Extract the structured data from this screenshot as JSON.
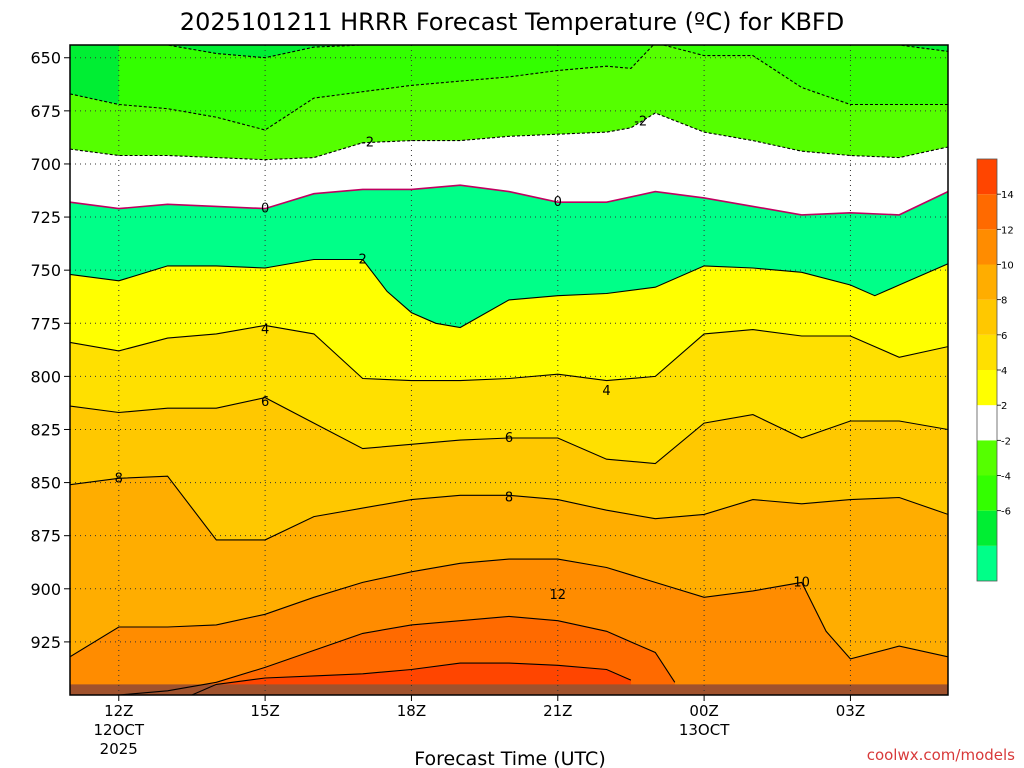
{
  "chart_data": {
    "type": "heatmap",
    "title": "2025101211 HRRR Forecast Temperature (ºC) for KBFD",
    "xlabel": "Forecast Time (UTC)",
    "ylabel": "",
    "x_unit": "hours since 12Z 12OCT 2025",
    "xlim": [
      -1,
      17
    ],
    "ylim": [
      950,
      644
    ],
    "y_ticks": [
      650,
      675,
      700,
      725,
      750,
      775,
      800,
      825,
      850,
      875,
      900,
      925
    ],
    "x_ticks": [
      {
        "x": 0,
        "label": "12Z",
        "sub1": "12OCT",
        "sub2": "2025"
      },
      {
        "x": 3,
        "label": "15Z",
        "sub1": "",
        "sub2": ""
      },
      {
        "x": 6,
        "label": "18Z",
        "sub1": "",
        "sub2": ""
      },
      {
        "x": 9,
        "label": "21Z",
        "sub1": "",
        "sub2": ""
      },
      {
        "x": 12,
        "label": "00Z",
        "sub1": "13OCT",
        "sub2": ""
      },
      {
        "x": 15,
        "label": "03Z",
        "sub1": "",
        "sub2": ""
      }
    ],
    "grid": true,
    "ground_level_hPa": 945,
    "colorbar": {
      "levels": [
        -8,
        -6,
        -4,
        -2,
        2,
        4,
        6,
        8,
        10,
        12,
        14,
        16
      ],
      "colors": [
        "#00ff88",
        "#00ee33",
        "#33ff00",
        "#55ff00",
        "#ffffff",
        "#ffff00",
        "#ffe000",
        "#ffc800",
        "#ffad00",
        "#ff8c00",
        "#ff6a00",
        "#ff4500"
      ],
      "tick_labels": [
        "-6",
        "-4",
        "-2",
        "2",
        "4",
        "6",
        "8",
        "10",
        "12",
        "14"
      ]
    },
    "series": [
      {
        "name": "-6",
        "level": -6,
        "dashed": true,
        "x": [
          0,
          1,
          2,
          3,
          4,
          5,
          6,
          7,
          8,
          9,
          10,
          10.5,
          11,
          12,
          13,
          14,
          15,
          16,
          17
        ],
        "p": [
          644,
          644,
          648,
          650,
          645,
          644,
          644,
          644,
          644,
          644,
          644,
          644,
          644,
          644,
          644,
          644,
          644,
          644,
          647
        ]
      },
      {
        "name": "-4",
        "level": -4,
        "dashed": true,
        "x": [
          -1,
          0,
          1,
          2,
          3,
          4,
          5,
          6,
          7,
          8,
          9,
          10,
          10.5,
          11,
          12,
          13,
          14,
          15,
          16,
          17
        ],
        "p": [
          667,
          672,
          674,
          678,
          684,
          669,
          666,
          663,
          661,
          659,
          656,
          654,
          655,
          643,
          649,
          649,
          664,
          672,
          672,
          672
        ]
      },
      {
        "name": "-2",
        "level": -2,
        "dashed": true,
        "x": [
          -1,
          0,
          1,
          2,
          3,
          4,
          5,
          6,
          7,
          8,
          9,
          10,
          10.5,
          11,
          12,
          13,
          14,
          15,
          16,
          17
        ],
        "p": [
          693,
          696,
          696,
          697,
          698,
          697,
          690,
          689,
          689,
          687,
          686,
          685,
          683,
          676,
          685,
          689,
          694,
          696,
          697,
          692
        ]
      },
      {
        "name": "0",
        "level": 0,
        "dashed": false,
        "color": "#c00060",
        "x": [
          -1,
          0,
          1,
          2,
          3,
          4,
          5,
          6,
          7,
          8,
          9,
          10,
          11,
          12,
          13,
          14,
          15,
          16,
          17
        ],
        "p": [
          718,
          721,
          719,
          720,
          721,
          714,
          712,
          712,
          710,
          713,
          718,
          718,
          713,
          716,
          720,
          724,
          723,
          724,
          713
        ]
      },
      {
        "name": "2",
        "level": 2,
        "dashed": false,
        "x": [
          -1,
          0,
          1,
          2,
          3,
          4,
          5,
          5.5,
          6,
          6.5,
          7,
          8,
          9,
          10,
          11,
          12,
          13,
          14,
          15,
          15.5,
          16,
          17
        ],
        "p": [
          752,
          755,
          748,
          748,
          749,
          745,
          745,
          760,
          770,
          775,
          777,
          764,
          762,
          761,
          758,
          748,
          749,
          751,
          757,
          762,
          757,
          747
        ]
      },
      {
        "name": "4",
        "level": 4,
        "dashed": false,
        "x": [
          -1,
          0,
          1,
          2,
          3,
          4,
          5,
          6,
          7,
          8,
          9,
          10,
          11,
          12,
          13,
          14,
          15,
          16,
          17
        ],
        "p": [
          784,
          788,
          782,
          780,
          776,
          780,
          801,
          802,
          802,
          801,
          799,
          802,
          800,
          780,
          778,
          781,
          781,
          791,
          786
        ]
      },
      {
        "name": "6",
        "level": 6,
        "dashed": false,
        "x": [
          -1,
          0,
          1,
          2,
          3,
          4,
          5,
          6,
          7,
          8,
          9,
          10,
          11,
          12,
          13,
          14,
          15,
          16,
          17
        ],
        "p": [
          814,
          817,
          815,
          815,
          810,
          822,
          834,
          832,
          830,
          829,
          829,
          839,
          841,
          822,
          818,
          829,
          821,
          821,
          825
        ]
      },
      {
        "name": "8",
        "level": 8,
        "dashed": false,
        "x": [
          -1,
          0,
          1,
          2,
          3,
          4,
          5,
          6,
          7,
          8,
          9,
          10,
          11,
          12,
          13,
          14,
          15,
          16,
          17
        ],
        "p": [
          851,
          848,
          847,
          877,
          877,
          866,
          862,
          858,
          856,
          856,
          858,
          863,
          867,
          865,
          858,
          860,
          858,
          857,
          865
        ]
      },
      {
        "name": "10",
        "level": 10,
        "dashed": false,
        "x": [
          -1,
          0,
          1,
          2,
          3,
          4,
          5,
          6,
          7,
          8,
          9,
          10,
          11,
          12,
          13,
          14,
          14.5,
          15,
          16,
          17
        ],
        "p": [
          932,
          918,
          918,
          917,
          912,
          904,
          897,
          892,
          888,
          886,
          886,
          890,
          897,
          904,
          901,
          897,
          920,
          933,
          927,
          932
        ]
      },
      {
        "name": "12",
        "level": 12,
        "dashed": false,
        "x": [
          0,
          1,
          2,
          3,
          4,
          5,
          6,
          7,
          8,
          9,
          10,
          11,
          11.4
        ],
        "p": [
          950,
          948,
          944,
          937,
          929,
          921,
          917,
          915,
          913,
          915,
          920,
          930,
          944
        ]
      },
      {
        "name": "14",
        "level": 14,
        "dashed": false,
        "x": [
          1.5,
          2,
          3,
          4,
          5,
          6,
          7,
          8,
          9,
          10,
          10.5
        ],
        "p": [
          950,
          945,
          942,
          941,
          940,
          938,
          935,
          935,
          936,
          938,
          943
        ]
      }
    ],
    "contour_labels": [
      {
        "text": "-2",
        "x": 10.7,
        "p": 680
      },
      {
        "text": "-2",
        "x": 5.1,
        "p": 690
      },
      {
        "text": "0",
        "x": 3.0,
        "p": 721
      },
      {
        "text": "0",
        "x": 9.0,
        "p": 718
      },
      {
        "text": "2",
        "x": 5.0,
        "p": 745
      },
      {
        "text": "4",
        "x": 3.0,
        "p": 778
      },
      {
        "text": "4",
        "x": 10.0,
        "p": 807
      },
      {
        "text": "6",
        "x": 3.0,
        "p": 812
      },
      {
        "text": "6",
        "x": 8.0,
        "p": 829
      },
      {
        "text": "8",
        "x": 0.0,
        "p": 848
      },
      {
        "text": "8",
        "x": 8.0,
        "p": 857
      },
      {
        "text": "10",
        "x": 14.0,
        "p": 897
      },
      {
        "text": "12",
        "x": 9.0,
        "p": 903
      }
    ]
  },
  "footer": {
    "credit": "coolwx.com/models"
  }
}
